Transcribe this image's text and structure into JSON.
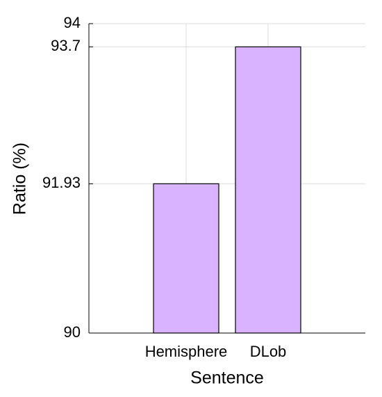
{
  "chart_data": {
    "type": "bar",
    "x_label": "Sentence",
    "y_label": "Ratio (%)",
    "categories": [
      "Hemisphere",
      "DLob"
    ],
    "values": [
      91.93,
      93.7
    ],
    "color": "#d9b3ff",
    "ylim": [
      90,
      94
    ],
    "yticks": [
      90,
      91.93,
      93.7,
      94
    ],
    "grid": true
  }
}
